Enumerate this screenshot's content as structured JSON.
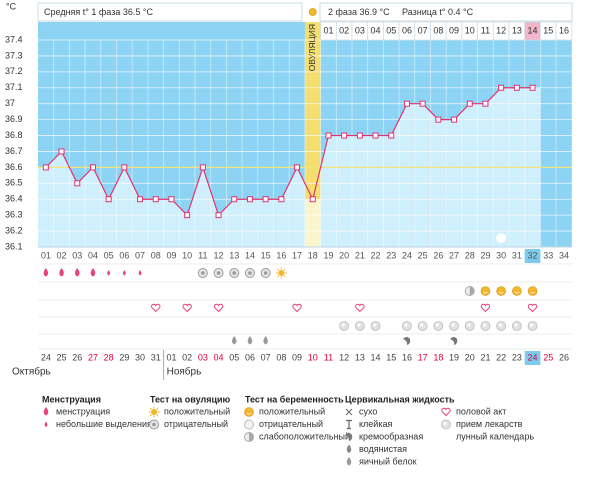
{
  "header": {
    "y_unit": "°С",
    "phase1": "Средняя t° 1 фаза 36.5 °С",
    "phase2": "2 фаза 36.9 °С",
    "difference": "Разница t° 0.4 °С"
  },
  "chart_data": {
    "type": "line",
    "categories": [
      "01",
      "02",
      "03",
      "04",
      "05",
      "06",
      "07",
      "08",
      "09",
      "10",
      "11",
      "12",
      "13",
      "14",
      "15",
      "16",
      "17",
      "18",
      "19",
      "20",
      "21",
      "22",
      "23",
      "24",
      "25",
      "26",
      "27",
      "28",
      "29",
      "30",
      "31",
      "32",
      "33",
      "34"
    ],
    "values": [
      36.6,
      36.7,
      36.5,
      36.6,
      36.4,
      36.6,
      36.4,
      36.4,
      36.4,
      36.3,
      36.6,
      36.3,
      36.4,
      36.4,
      36.4,
      36.4,
      36.6,
      36.4,
      36.8,
      36.8,
      36.8,
      36.8,
      36.8,
      37.0,
      37.0,
      36.9,
      36.9,
      37.0,
      37.0,
      37.1,
      37.1,
      37.1,
      null,
      null
    ],
    "luteal_days": [
      null,
      null,
      null,
      null,
      null,
      null,
      null,
      null,
      null,
      null,
      null,
      null,
      null,
      null,
      null,
      null,
      null,
      null,
      "01",
      "02",
      "03",
      "04",
      "05",
      "06",
      "07",
      "08",
      "09",
      "10",
      "11",
      "12",
      "13",
      "14",
      "15",
      "16"
    ],
    "ovulation_day": "18",
    "ovulation_label": "ОВУЛЯЦИЯ",
    "highlight_day": "32",
    "dates": [
      "24",
      "25",
      "26",
      "27",
      "28",
      "29",
      "30",
      "31",
      "01",
      "02",
      "03",
      "04",
      "05",
      "06",
      "07",
      "08",
      "09",
      "10",
      "11",
      "12",
      "13",
      "14",
      "15",
      "16",
      "17",
      "18",
      "19",
      "20",
      "21",
      "22",
      "23",
      "24",
      "25",
      "26"
    ],
    "weekend": [
      false,
      false,
      false,
      true,
      true,
      false,
      false,
      false,
      false,
      false,
      true,
      true,
      false,
      false,
      false,
      false,
      false,
      true,
      true,
      false,
      false,
      false,
      false,
      false,
      true,
      true,
      false,
      false,
      false,
      false,
      false,
      true,
      true,
      false
    ],
    "months": [
      "Октябрь",
      null,
      null,
      null,
      null,
      null,
      null,
      null,
      "Ноябрь",
      null,
      null,
      null,
      null,
      null,
      null,
      null,
      null,
      null,
      null,
      null,
      null,
      null,
      null,
      null,
      null,
      null,
      null,
      null,
      null,
      null,
      null,
      null,
      null,
      null
    ],
    "color": "#e2336f",
    "fill_color": "#cfeffc",
    "background_color": "#8dd4f4",
    "ovulation_color": "#f5de70",
    "ovulation_fill_color": "#fbf5cc",
    "ylim": [
      36.1,
      37.4
    ],
    "yticks": [
      36.1,
      36.2,
      36.3,
      36.4,
      36.5,
      36.6,
      36.7,
      36.8,
      36.9,
      37,
      37.1,
      37.2,
      37.3,
      37.4
    ],
    "grid": true,
    "cover_line": 36.6,
    "cover_line_color": "#f2e37c"
  },
  "legend": [
    {
      "title": "Менструация",
      "items": [
        {
          "label": "менструация",
          "marker": "drop",
          "color": "#e8437a",
          "days": [
            "01",
            "02",
            "03",
            "04"
          ]
        },
        {
          "label": "небольшие выделения",
          "marker": "drop-small",
          "color": "#e8437a",
          "days": [
            "05",
            "06",
            "07"
          ]
        }
      ]
    },
    {
      "title": "Тест на овуляцию",
      "items": [
        {
          "label": "положительный",
          "marker": "sun",
          "color": "#f3b52a",
          "days": [
            "16"
          ]
        },
        {
          "label": "отрицательный",
          "marker": "ring",
          "color": "#999999",
          "days": [
            "11",
            "12",
            "13",
            "14",
            "15"
          ]
        }
      ]
    },
    {
      "title": "Тест на беременность",
      "items": [
        {
          "label": "положительный",
          "marker": "smiley",
          "color": "#f3b52a",
          "days": [
            "29",
            "30",
            "31",
            "32"
          ]
        },
        {
          "label": "отрицательный",
          "marker": "ring-light",
          "color": "#bbbbbb",
          "days": []
        },
        {
          "label": "слабоположительный",
          "marker": "half",
          "color": "#a8a8a8",
          "days": [
            "28"
          ]
        }
      ]
    },
    {
      "title": "Цервикальная жидкость",
      "items": [
        {
          "label": "сухо",
          "marker": "cross",
          "color": "#666666",
          "days": []
        },
        {
          "label": "клейкая",
          "marker": "tee",
          "color": "#666666",
          "days": []
        },
        {
          "label": "кремообразная",
          "marker": "swirl",
          "color": "#777777",
          "days": [
            "24",
            "27"
          ]
        },
        {
          "label": "водянистая",
          "marker": "drop",
          "color": "#888888",
          "days": []
        },
        {
          "label": "яичный белок",
          "marker": "drop",
          "color": "#9a9a9a",
          "days": [
            "13",
            "14",
            "15"
          ]
        }
      ]
    },
    {
      "items": [
        {
          "label": "половой акт",
          "marker": "heart",
          "color": "#e8437a",
          "days": [
            "08",
            "10",
            "12",
            "17",
            "21",
            "29",
            "32"
          ]
        },
        {
          "label": "прием лекарств",
          "marker": "pill",
          "color": "#bbbbbb",
          "days": [
            "20",
            "21",
            "22",
            "24",
            "25",
            "26",
            "27",
            "28",
            "29",
            "30",
            "31",
            "32"
          ]
        },
        {
          "label": "лунный календарь",
          "marker": "moon",
          "color": "#e8437a",
          "days": [
            "30"
          ]
        }
      ]
    }
  ]
}
